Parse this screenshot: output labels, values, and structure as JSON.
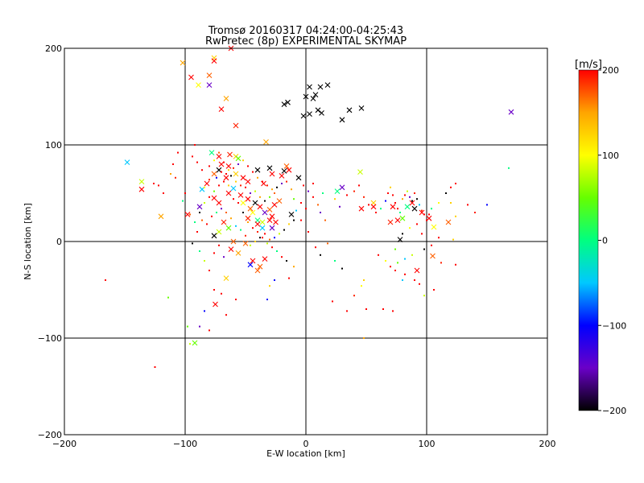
{
  "chart_data": {
    "type": "scatter",
    "title": "Tromsø 20160317 04:24:00-04:25:43",
    "subtitle": "RwPretec (8p) EXPERIMENTAL SKYMAP",
    "xlabel": "E-W location [km]",
    "ylabel": "N-S location [km]",
    "xlim": [
      -200,
      200
    ],
    "ylim": [
      -200,
      200
    ],
    "xticks": [
      -200,
      -100,
      0,
      100,
      200
    ],
    "yticks": [
      -200,
      -100,
      0,
      100,
      200
    ],
    "grid_x": [
      -100,
      0,
      100
    ],
    "grid_y": [
      -100,
      0,
      100
    ],
    "colorbar": {
      "label": "[m/s]",
      "range": [
        -200,
        200
      ],
      "ticks": [
        200,
        100,
        0,
        -100,
        -200
      ],
      "colors": [
        "#000000",
        "#6a00c8",
        "#0000ff",
        "#00c8ff",
        "#00ff80",
        "#66ff00",
        "#ffff00",
        "#ffa500",
        "#ff0000"
      ]
    },
    "series": [
      {
        "marker": "x",
        "points": [
          [
            -102,
            185
          ],
          [
            -76,
            190
          ],
          [
            -76,
            187
          ],
          [
            -62,
            200
          ],
          [
            -80,
            172
          ],
          [
            -66,
            148
          ],
          [
            -70,
            137
          ],
          [
            -80,
            162
          ],
          [
            -89,
            162
          ],
          [
            -58,
            120
          ],
          [
            -95,
            170
          ],
          [
            -148,
            82
          ],
          [
            -136,
            62
          ],
          [
            -136,
            54
          ],
          [
            -120,
            26
          ],
          [
            -98,
            28
          ],
          [
            -92,
            -105
          ],
          [
            -75,
            -65
          ],
          [
            -66,
            -38
          ],
          [
            -33,
            103
          ],
          [
            -28,
            70
          ],
          [
            -35,
            60
          ],
          [
            -40,
            74
          ],
          [
            -30,
            76
          ],
          [
            -20,
            68
          ],
          [
            -16,
            78
          ],
          [
            -18,
            73
          ],
          [
            -14,
            74
          ],
          [
            -63,
            90
          ],
          [
            -58,
            88
          ],
          [
            -56,
            86
          ],
          [
            -64,
            78
          ],
          [
            -70,
            80
          ],
          [
            -72,
            74
          ],
          [
            -76,
            70
          ],
          [
            -66,
            66
          ],
          [
            -58,
            70
          ],
          [
            -52,
            66
          ],
          [
            -48,
            62
          ],
          [
            -60,
            55
          ],
          [
            -64,
            50
          ],
          [
            -54,
            48
          ],
          [
            -48,
            44
          ],
          [
            -42,
            40
          ],
          [
            -38,
            36
          ],
          [
            -34,
            30
          ],
          [
            -30,
            33
          ],
          [
            -26,
            38
          ],
          [
            -44,
            30
          ],
          [
            -48,
            24
          ],
          [
            -40,
            22
          ],
          [
            -36,
            20
          ],
          [
            -30,
            22
          ],
          [
            -28,
            26
          ],
          [
            -22,
            42
          ],
          [
            -76,
            45
          ],
          [
            -72,
            40
          ],
          [
            -68,
            20
          ],
          [
            -64,
            14
          ],
          [
            -72,
            10
          ],
          [
            -76,
            6
          ],
          [
            -62,
            -8
          ],
          [
            -60,
            0
          ],
          [
            -56,
            -12
          ],
          [
            -50,
            -2
          ],
          [
            -46,
            -24
          ],
          [
            -38,
            -26
          ],
          [
            -40,
            -30
          ],
          [
            -44,
            -20
          ],
          [
            -34,
            -18
          ],
          [
            -78,
            92
          ],
          [
            -72,
            88
          ],
          [
            -82,
            60
          ],
          [
            -86,
            54
          ],
          [
            -88,
            36
          ],
          [
            -12,
            28
          ],
          [
            -6,
            66
          ],
          [
            -18,
            142
          ],
          [
            -15,
            144
          ],
          [
            -2,
            130
          ],
          [
            3,
            132
          ],
          [
            0,
            150
          ],
          [
            3,
            160
          ],
          [
            6,
            148
          ],
          [
            8,
            152
          ],
          [
            10,
            136
          ],
          [
            12,
            160
          ],
          [
            18,
            162
          ],
          [
            13,
            133
          ],
          [
            36,
            136
          ],
          [
            30,
            126
          ],
          [
            46,
            138
          ],
          [
            30,
            56
          ],
          [
            26,
            52
          ],
          [
            45,
            72
          ],
          [
            56,
            40
          ],
          [
            56,
            36
          ],
          [
            46,
            34
          ],
          [
            72,
            36
          ],
          [
            76,
            22
          ],
          [
            70,
            20
          ],
          [
            80,
            24
          ],
          [
            84,
            36
          ],
          [
            88,
            40
          ],
          [
            90,
            34
          ],
          [
            96,
            30
          ],
          [
            102,
            24
          ],
          [
            106,
            15
          ],
          [
            105,
            -15
          ],
          [
            92,
            -30
          ],
          [
            78,
            2
          ],
          [
            118,
            20
          ],
          [
            170,
            134
          ],
          [
            -52,
            40
          ],
          [
            -46,
            34
          ],
          [
            -40,
            18
          ],
          [
            -36,
            14
          ],
          [
            -28,
            14
          ],
          [
            -25,
            20
          ]
        ]
      },
      {
        "marker": "dot",
        "points": [
          [
            -166,
            -40
          ],
          [
            -125,
            -130
          ],
          [
            -114,
            -58
          ],
          [
            -98,
            -88
          ],
          [
            -96,
            -106
          ],
          [
            -88,
            -88
          ],
          [
            -80,
            -92
          ],
          [
            -84,
            -72
          ],
          [
            -66,
            -76
          ],
          [
            -70,
            -54
          ],
          [
            -76,
            -50
          ],
          [
            -58,
            -60
          ],
          [
            -30,
            -46
          ],
          [
            -32,
            -60
          ],
          [
            -26,
            -40
          ],
          [
            -14,
            -38
          ],
          [
            -10,
            -26
          ],
          [
            22,
            -62
          ],
          [
            34,
            -72
          ],
          [
            48,
            -100
          ],
          [
            50,
            -70
          ],
          [
            64,
            -70
          ],
          [
            72,
            -72
          ],
          [
            74,
            -30
          ],
          [
            80,
            -40
          ],
          [
            82,
            -34
          ],
          [
            90,
            -40
          ],
          [
            94,
            -44
          ],
          [
            98,
            -56
          ],
          [
            106,
            -50
          ],
          [
            112,
            -22
          ],
          [
            124,
            -24
          ],
          [
            -112,
            70
          ],
          [
            -108,
            66
          ],
          [
            -100,
            50
          ],
          [
            -102,
            42
          ],
          [
            -96,
            28
          ],
          [
            -92,
            20
          ],
          [
            -90,
            10
          ],
          [
            -94,
            -2
          ],
          [
            -88,
            -10
          ],
          [
            -84,
            -20
          ],
          [
            -80,
            -30
          ],
          [
            -76,
            -12
          ],
          [
            -72,
            -4
          ],
          [
            -68,
            -16
          ],
          [
            -92,
            100
          ],
          [
            -94,
            88
          ],
          [
            -90,
            82
          ],
          [
            -86,
            74
          ],
          [
            -80,
            78
          ],
          [
            -76,
            84
          ],
          [
            -72,
            92
          ],
          [
            -68,
            82
          ],
          [
            -64,
            74
          ],
          [
            -62,
            68
          ],
          [
            -58,
            62
          ],
          [
            -54,
            58
          ],
          [
            -50,
            56
          ],
          [
            -46,
            50
          ],
          [
            -42,
            52
          ],
          [
            -38,
            46
          ],
          [
            -34,
            42
          ],
          [
            -30,
            46
          ],
          [
            -26,
            50
          ],
          [
            -24,
            56
          ],
          [
            -20,
            60
          ],
          [
            -16,
            62
          ],
          [
            -12,
            54
          ],
          [
            -10,
            44
          ],
          [
            -8,
            32
          ],
          [
            -10,
            22
          ],
          [
            -14,
            18
          ],
          [
            -18,
            12
          ],
          [
            -22,
            8
          ],
          [
            -26,
            4
          ],
          [
            -30,
            2
          ],
          [
            -34,
            8
          ],
          [
            -38,
            4
          ],
          [
            -42,
            0
          ],
          [
            -46,
            -4
          ],
          [
            -50,
            6
          ],
          [
            -54,
            12
          ],
          [
            -58,
            16
          ],
          [
            -62,
            24
          ],
          [
            -66,
            30
          ],
          [
            -70,
            34
          ],
          [
            -74,
            30
          ],
          [
            -78,
            26
          ],
          [
            -82,
            18
          ],
          [
            -86,
            22
          ],
          [
            -88,
            30
          ],
          [
            -84,
            40
          ],
          [
            -80,
            46
          ],
          [
            -76,
            52
          ],
          [
            -72,
            58
          ],
          [
            -68,
            62
          ],
          [
            -64,
            58
          ],
          [
            -60,
            44
          ],
          [
            -56,
            40
          ],
          [
            -52,
            30
          ],
          [
            -48,
            20
          ],
          [
            -44,
            14
          ],
          [
            -40,
            10
          ],
          [
            -36,
            4
          ],
          [
            -32,
            -2
          ],
          [
            -28,
            -6
          ],
          [
            -24,
            -10
          ],
          [
            -20,
            -16
          ],
          [
            -16,
            -20
          ],
          [
            -84,
            56
          ],
          [
            -80,
            64
          ],
          [
            -74,
            66
          ],
          [
            -70,
            72
          ],
          [
            -66,
            70
          ],
          [
            -60,
            76
          ],
          [
            -56,
            80
          ],
          [
            -52,
            84
          ],
          [
            -48,
            78
          ],
          [
            -44,
            72
          ],
          [
            -40,
            66
          ],
          [
            -36,
            62
          ],
          [
            -32,
            58
          ],
          [
            -28,
            54
          ],
          [
            -4,
            40
          ],
          [
            0,
            34
          ],
          [
            6,
            60
          ],
          [
            14,
            50
          ],
          [
            18,
            -2
          ],
          [
            24,
            44
          ],
          [
            28,
            36
          ],
          [
            34,
            48
          ],
          [
            40,
            52
          ],
          [
            44,
            58
          ],
          [
            48,
            46
          ],
          [
            52,
            38
          ],
          [
            58,
            30
          ],
          [
            62,
            34
          ],
          [
            66,
            42
          ],
          [
            68,
            50
          ],
          [
            70,
            56
          ],
          [
            72,
            48
          ],
          [
            74,
            40
          ],
          [
            76,
            34
          ],
          [
            78,
            30
          ],
          [
            80,
            44
          ],
          [
            82,
            48
          ],
          [
            84,
            52
          ],
          [
            86,
            46
          ],
          [
            88,
            42
          ],
          [
            90,
            50
          ],
          [
            92,
            44
          ],
          [
            94,
            38
          ],
          [
            96,
            32
          ],
          [
            98,
            28
          ],
          [
            100,
            22
          ],
          [
            102,
            28
          ],
          [
            104,
            34
          ],
          [
            110,
            40
          ],
          [
            116,
            50
          ],
          [
            120,
            56
          ],
          [
            124,
            60
          ],
          [
            110,
            4
          ],
          [
            104,
            -4
          ],
          [
            98,
            -8
          ],
          [
            88,
            -14
          ],
          [
            82,
            -18
          ],
          [
            76,
            -22
          ],
          [
            70,
            -26
          ],
          [
            66,
            -20
          ],
          [
            60,
            -14
          ],
          [
            74,
            -8
          ],
          [
            80,
            8
          ],
          [
            86,
            14
          ],
          [
            92,
            18
          ],
          [
            96,
            8
          ],
          [
            120,
            40
          ],
          [
            124,
            26
          ],
          [
            134,
            38
          ],
          [
            140,
            30
          ],
          [
            150,
            38
          ],
          [
            168,
            76
          ],
          [
            122,
            2
          ],
          [
            48,
            -40
          ],
          [
            46,
            -46
          ],
          [
            40,
            -56
          ],
          [
            -4,
            22
          ],
          [
            2,
            10
          ],
          [
            8,
            -6
          ],
          [
            12,
            -14
          ],
          [
            24,
            -20
          ],
          [
            30,
            -28
          ],
          [
            16,
            22
          ],
          [
            12,
            30
          ],
          [
            10,
            38
          ],
          [
            6,
            46
          ],
          [
            2,
            52
          ],
          [
            -2,
            58
          ],
          [
            -118,
            50
          ],
          [
            -122,
            58
          ],
          [
            -126,
            60
          ],
          [
            -106,
            92
          ],
          [
            -110,
            80
          ]
        ]
      }
    ]
  }
}
